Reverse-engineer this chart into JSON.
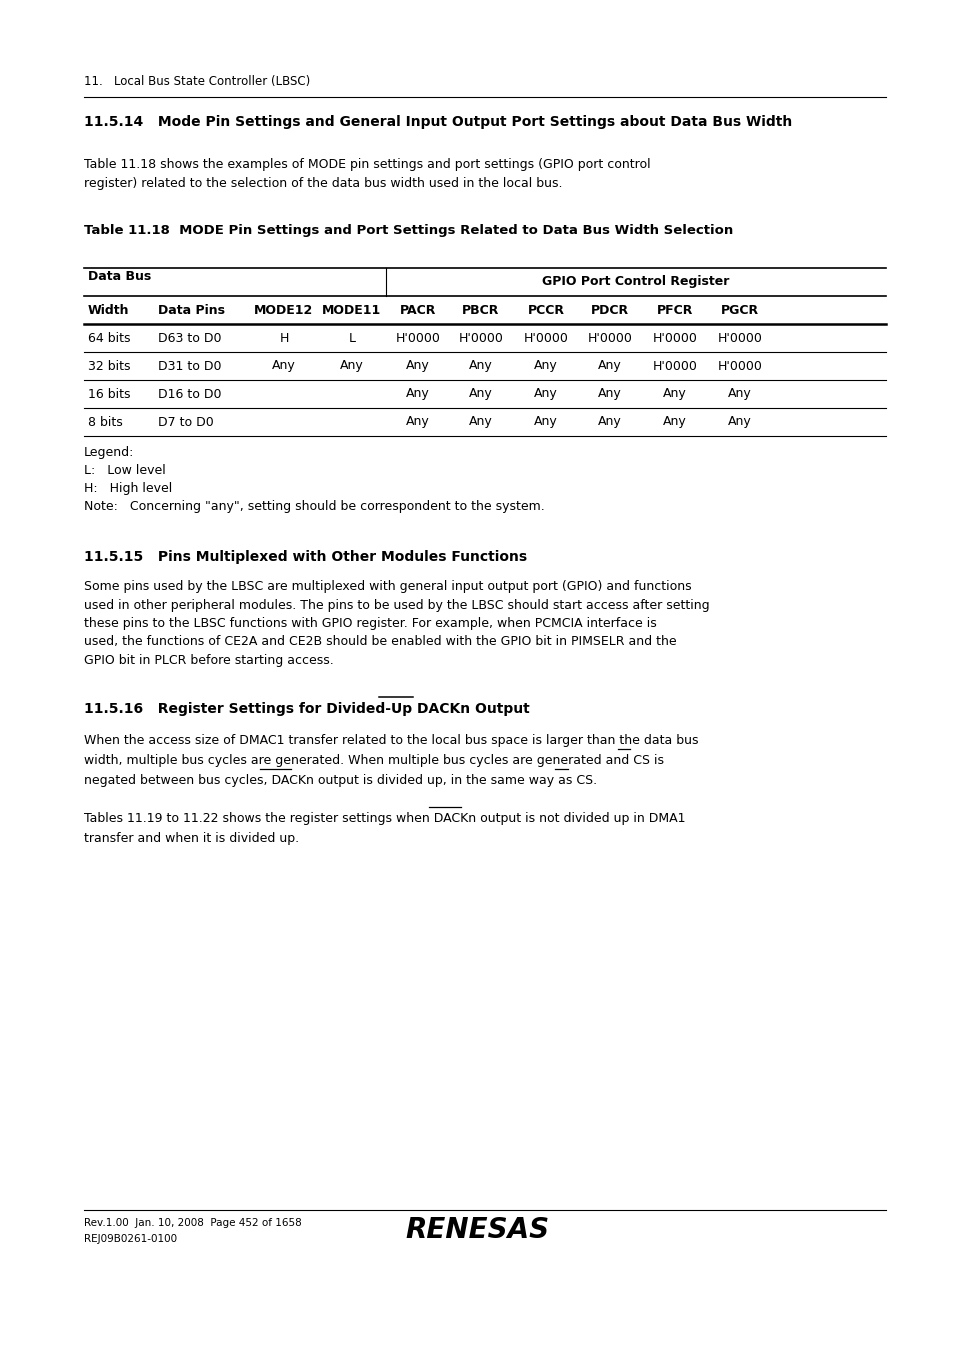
{
  "page_header": "11.   Local Bus State Controller (LBSC)",
  "section_title": "11.5.14   Mode Pin Settings and General Input Output Port Settings about Data Bus Width",
  "intro_text": "Table 11.18 shows the examples of MODE pin settings and port settings (GPIO port control\nregister) related to the selection of the data bus width used in the local bus.",
  "table_title": "Table 11.18  MODE Pin Settings and Port Settings Related to Data Bus Width Selection",
  "table_header_row1_left": "Data Bus",
  "table_header_row1_right": "GPIO Port Control Register",
  "table_header_row2": [
    "Width",
    "Data Pins",
    "MODE12",
    "MODE11",
    "PACR",
    "PBCR",
    "PCCR",
    "PDCR",
    "PFCR",
    "PGCR"
  ],
  "table_rows": [
    [
      "64 bits",
      "D63 to D0",
      "H",
      "L",
      "H'0000",
      "H'0000",
      "H'0000",
      "H'0000",
      "H'0000",
      "H'0000"
    ],
    [
      "32 bits",
      "D31 to D0",
      "Any",
      "Any",
      "Any",
      "Any",
      "Any",
      "Any",
      "H'0000",
      "H'0000"
    ],
    [
      "16 bits",
      "D16 to D0",
      "",
      "",
      "Any",
      "Any",
      "Any",
      "Any",
      "Any",
      "Any"
    ],
    [
      "8 bits",
      "D7 to D0",
      "",
      "",
      "Any",
      "Any",
      "Any",
      "Any",
      "Any",
      "Any"
    ]
  ],
  "legend_lines": [
    "Legend:",
    "L:   Low level",
    "H:   High level",
    "Note:   Concerning \"any\", setting should be correspondent to the system."
  ],
  "section2_title": "11.5.15   Pins Multiplexed with Other Modules Functions",
  "section2_text": "Some pins used by the LBSC are multiplexed with general input output port (GPIO) and functions\nused in other peripheral modules. The pins to be used by the LBSC should start access after setting\nthese pins to the LBSC functions with GPIO register. For example, when PCMCIA interface is\nused, the functions of CE2A and CE2B should be enabled with the GPIO bit in PIMSELR and the\nGPIO bit in PLCR before starting access.",
  "section3_title": "11.5.16   Register Settings for Divided-Up DACKn Output",
  "section3_title_overline_word": "DACKn",
  "section3_para1_line1": "When the access size of DMAC1 transfer related to the local bus space is larger than the data bus",
  "section3_para1_line2": "width, multiple bus cycles are generated. When multiple bus cycles are generated and CS is",
  "section3_para1_line3": "negated between bus cycles, DACKn output is divided up, in the same way as CS.",
  "section3_para2_line1": "Tables 11.19 to 11.22 shows the register settings when DACKn output is not divided up in DMA1",
  "section3_para2_line2": "transfer and when it is divided up.",
  "footer_left1": "Rev.1.00  Jan. 10, 2008  Page 452 of 1658",
  "footer_left2": "REJ09B0261-0100",
  "footer_logo": "RENESAS",
  "bg_color": "#ffffff",
  "text_color": "#000000"
}
